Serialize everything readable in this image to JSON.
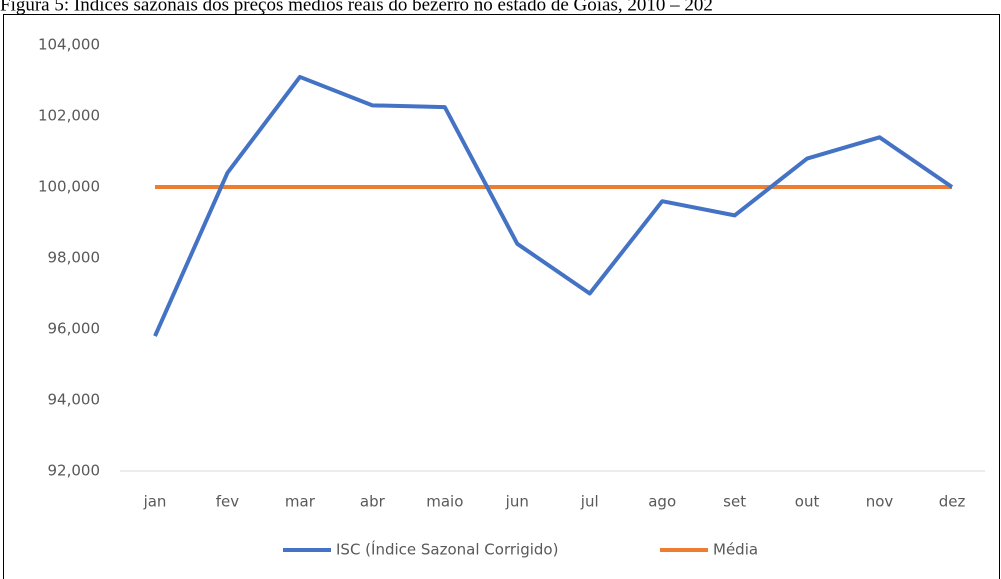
{
  "caption": "Figura 5: Índices sazonais dos preços médios reais do bezerro no estado de Goiás, 2010 – 202",
  "chart_data": {
    "type": "line",
    "categories": [
      "jan",
      "fev",
      "mar",
      "abr",
      "maio",
      "jun",
      "jul",
      "ago",
      "set",
      "out",
      "nov",
      "dez"
    ],
    "series": [
      {
        "name": "ISC (Índice Sazonal Corrigido)",
        "color": "#4472c4",
        "values": [
          95.8,
          100.4,
          103.1,
          102.3,
          102.25,
          98.4,
          97.0,
          99.6,
          99.2,
          100.8,
          101.4,
          100.0
        ]
      },
      {
        "name": "Média",
        "color": "#ed7d31",
        "values": [
          100,
          100,
          100,
          100,
          100,
          100,
          100,
          100,
          100,
          100,
          100,
          100
        ]
      }
    ],
    "ylim": [
      92,
      104
    ],
    "yticks": [
      {
        "value": 92,
        "label": "92,000"
      },
      {
        "value": 94,
        "label": "94,000"
      },
      {
        "value": 96,
        "label": "96,000"
      },
      {
        "value": 98,
        "label": "98,000"
      },
      {
        "value": 100,
        "label": "100,000"
      },
      {
        "value": 102,
        "label": "102,000"
      },
      {
        "value": 104,
        "label": "104,000"
      }
    ],
    "grid": false,
    "legend": "bottom"
  }
}
